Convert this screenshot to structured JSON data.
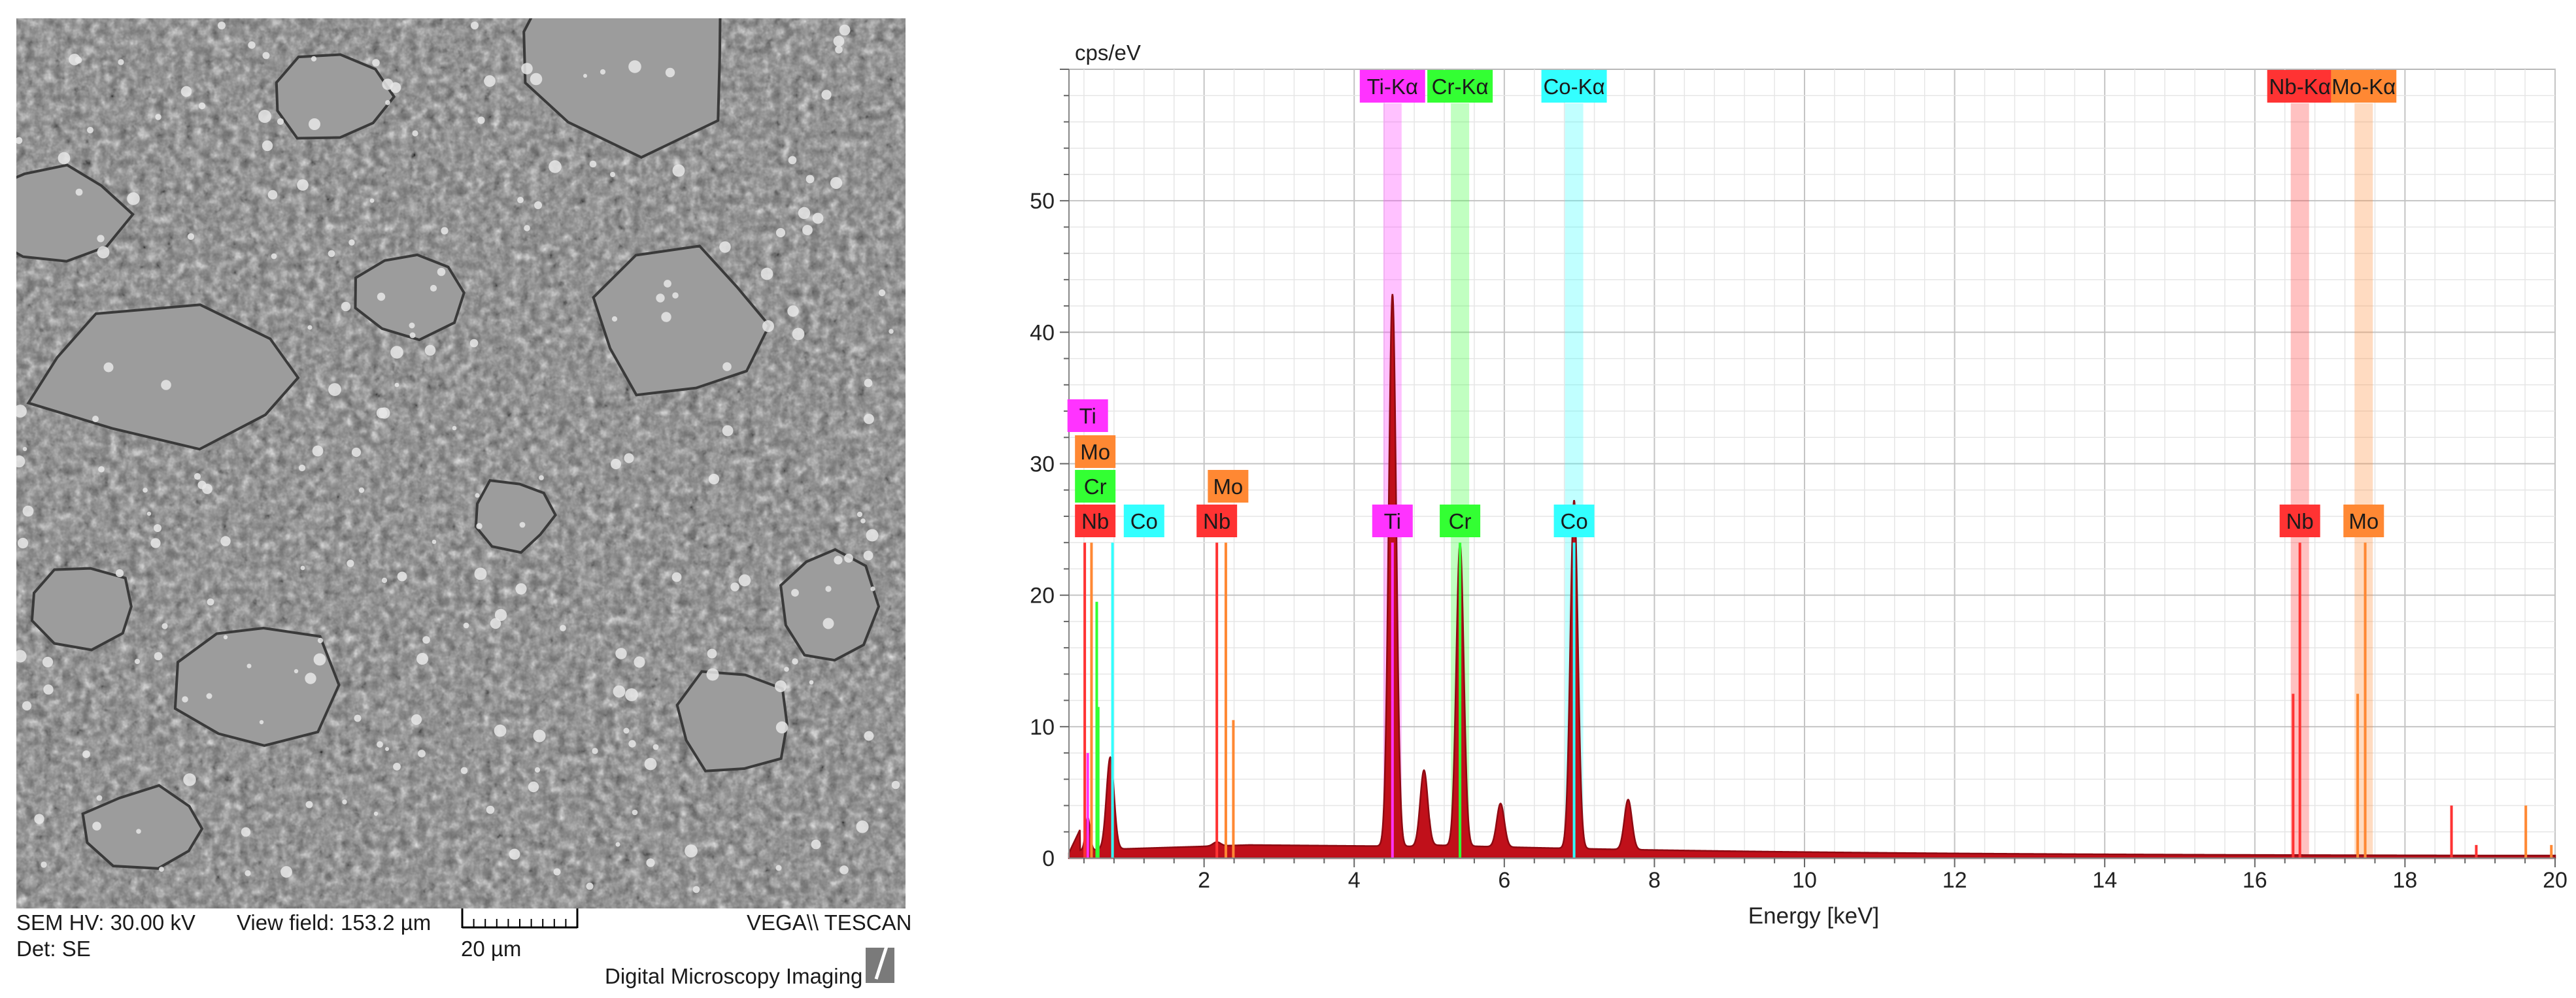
{
  "sem": {
    "hv": "SEM HV: 30.00 kV",
    "view_field": "View field: 153.2 µm",
    "scale_label": "20 µm",
    "brand": "VEGA\\\\ TESCAN",
    "detector": "Det: SE",
    "footer": "Digital Microscopy Imaging"
  },
  "chart_data": {
    "type": "line",
    "ylabel": "cps/eV",
    "xlabel": "Energy [keV]",
    "xlim": [
      0.2,
      20
    ],
    "ylim": [
      0,
      60
    ],
    "x_ticks": [
      2,
      4,
      6,
      8,
      10,
      12,
      14,
      16,
      18,
      20
    ],
    "y_ticks": [
      0,
      10,
      20,
      30,
      40,
      50
    ],
    "grid": true,
    "series_color": "#c0101a",
    "peaks": [
      {
        "energy": 0.45,
        "height": 2.5,
        "width": 0.03
      },
      {
        "energy": 0.75,
        "height": 7.0,
        "width": 0.05
      },
      {
        "energy": 4.51,
        "height": 42.0,
        "width": 0.05
      },
      {
        "energy": 4.93,
        "height": 5.8,
        "width": 0.05
      },
      {
        "energy": 5.41,
        "height": 23.0,
        "width": 0.05
      },
      {
        "energy": 5.95,
        "height": 3.3,
        "width": 0.05
      },
      {
        "energy": 6.93,
        "height": 26.5,
        "width": 0.05
      },
      {
        "energy": 7.65,
        "height": 3.8,
        "width": 0.05
      },
      {
        "energy": 2.17,
        "height": 0.3,
        "width": 0.05
      }
    ],
    "elements": [
      {
        "symbol": "Ti",
        "color": "#ff33ff"
      },
      {
        "symbol": "Cr",
        "color": "#33ff33"
      },
      {
        "symbol": "Co",
        "color": "#33ffff"
      },
      {
        "symbol": "Nb",
        "color": "#ff3333"
      },
      {
        "symbol": "Mo",
        "color": "#ff8833"
      }
    ],
    "kalpha_bands": [
      {
        "label": "Ti-Kα",
        "energy": 4.51,
        "color": "#ff33ff"
      },
      {
        "label": "Cr-Kα",
        "energy": 5.41,
        "color": "#33ff33"
      },
      {
        "label": "Co-Kα",
        "energy": 6.93,
        "color": "#33ffff"
      },
      {
        "label": "Nb-Kα",
        "energy": 16.6,
        "color": "#ff3333"
      },
      {
        "label": "Mo-Kα",
        "energy": 17.45,
        "color": "#ff8833"
      }
    ],
    "element_labels": [
      {
        "label": "Ti",
        "energy": 0.45,
        "row": 3,
        "color": "#ff33ff"
      },
      {
        "label": "Mo",
        "energy": 0.55,
        "row": 2,
        "color": "#ff8833"
      },
      {
        "label": "Cr",
        "energy": 0.55,
        "row": 1,
        "color": "#33ff33"
      },
      {
        "label": "Nb",
        "energy": 0.55,
        "row": 0,
        "color": "#ff3333"
      },
      {
        "label": "Co",
        "energy": 1.2,
        "row": 0,
        "color": "#33ffff"
      },
      {
        "label": "Mo",
        "energy": 2.32,
        "row": 1,
        "color": "#ff8833"
      },
      {
        "label": "Nb",
        "energy": 2.17,
        "row": 0,
        "color": "#ff3333"
      },
      {
        "label": "Ti",
        "energy": 4.51,
        "row": 0,
        "color": "#ff33ff"
      },
      {
        "label": "Cr",
        "energy": 5.41,
        "row": 0,
        "color": "#33ff33"
      },
      {
        "label": "Co",
        "energy": 6.93,
        "row": 0,
        "color": "#33ffff"
      },
      {
        "label": "Nb",
        "energy": 16.6,
        "row": 0,
        "color": "#ff3333"
      },
      {
        "label": "Mo",
        "energy": 17.45,
        "row": 0,
        "color": "#ff8833"
      }
    ],
    "marker_lines": [
      {
        "energy": 0.41,
        "height": 24,
        "color": "#ff3333"
      },
      {
        "energy": 0.45,
        "height": 8,
        "color": "#ff33ff"
      },
      {
        "energy": 0.5,
        "height": 24,
        "color": "#ff8833"
      },
      {
        "energy": 0.57,
        "height": 19.5,
        "color": "#33ff33"
      },
      {
        "energy": 0.59,
        "height": 11.5,
        "color": "#33ff33"
      },
      {
        "energy": 0.78,
        "height": 24,
        "color": "#33ffff"
      },
      {
        "energy": 2.17,
        "height": 24,
        "color": "#ff3333"
      },
      {
        "energy": 2.29,
        "height": 24,
        "color": "#ff8833"
      },
      {
        "energy": 2.39,
        "height": 10.5,
        "color": "#ff8833"
      },
      {
        "energy": 4.51,
        "height": 24,
        "color": "#ff33ff"
      },
      {
        "energy": 5.41,
        "height": 24,
        "color": "#33ff33"
      },
      {
        "energy": 6.93,
        "height": 24,
        "color": "#33ffff"
      },
      {
        "energy": 16.51,
        "height": 12.5,
        "color": "#ff3333"
      },
      {
        "energy": 16.6,
        "height": 24,
        "color": "#ff3333"
      },
      {
        "energy": 17.37,
        "height": 12.5,
        "color": "#ff8833"
      },
      {
        "energy": 17.47,
        "height": 24,
        "color": "#ff8833"
      },
      {
        "energy": 18.62,
        "height": 4,
        "color": "#ff3333"
      },
      {
        "energy": 18.95,
        "height": 1,
        "color": "#ff3333"
      },
      {
        "energy": 19.61,
        "height": 4,
        "color": "#ff8833"
      },
      {
        "energy": 19.95,
        "height": 1,
        "color": "#ff8833"
      }
    ]
  }
}
